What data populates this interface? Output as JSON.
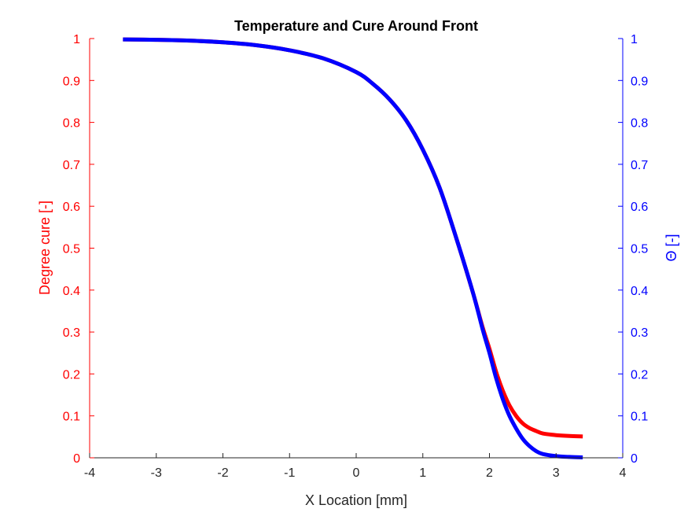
{
  "chart_data": {
    "type": "line",
    "title": "Temperature and Cure Around Front",
    "xlabel": "X Location [mm]",
    "ylabel_left": "Degree cure [-]",
    "ylabel_right": "Θ [-]",
    "xlim": [
      -4,
      4
    ],
    "ylim_left": [
      0,
      1
    ],
    "ylim_right": [
      0,
      1
    ],
    "x_ticks": [
      "-4",
      "-3",
      "-2",
      "-1",
      "0",
      "1",
      "2",
      "3",
      "4"
    ],
    "y_ticks_left": [
      "0",
      "0.1",
      "0.2",
      "0.3",
      "0.4",
      "0.5",
      "0.6",
      "0.7",
      "0.8",
      "0.9",
      "1"
    ],
    "y_ticks_right": [
      "0",
      "0.1",
      "0.2",
      "0.3",
      "0.4",
      "0.5",
      "0.6",
      "0.7",
      "0.8",
      "0.9",
      "1"
    ],
    "grid": false,
    "colors": {
      "left": "#ff0000",
      "right": "#0000ff",
      "axis": "#262626"
    },
    "series": [
      {
        "axis": "left",
        "color": "#ff0000",
        "x": [
          -3.5,
          -3.0,
          -2.5,
          -2.0,
          -1.5,
          -1.0,
          -0.5,
          0.0,
          0.25,
          0.5,
          0.75,
          1.0,
          1.25,
          1.5,
          1.75,
          1.9,
          2.0,
          2.1,
          2.2,
          2.3,
          2.4,
          2.5,
          2.6,
          2.7,
          2.8,
          3.0,
          3.2,
          3.4
        ],
        "y": [
          0.998,
          0.997,
          0.995,
          0.991,
          0.984,
          0.972,
          0.953,
          0.92,
          0.892,
          0.855,
          0.805,
          0.735,
          0.645,
          0.525,
          0.395,
          0.31,
          0.26,
          0.205,
          0.16,
          0.125,
          0.1,
          0.082,
          0.071,
          0.064,
          0.058,
          0.054,
          0.052,
          0.051
        ]
      },
      {
        "axis": "right",
        "color": "#0000ff",
        "x": [
          -3.5,
          -3.0,
          -2.5,
          -2.0,
          -1.5,
          -1.0,
          -0.5,
          0.0,
          0.25,
          0.5,
          0.75,
          1.0,
          1.25,
          1.5,
          1.75,
          1.9,
          2.0,
          2.1,
          2.2,
          2.3,
          2.4,
          2.5,
          2.6,
          2.7,
          2.8,
          3.0,
          3.2,
          3.4
        ],
        "y": [
          0.998,
          0.997,
          0.995,
          0.991,
          0.984,
          0.972,
          0.953,
          0.92,
          0.892,
          0.855,
          0.805,
          0.735,
          0.645,
          0.525,
          0.395,
          0.305,
          0.25,
          0.19,
          0.14,
          0.1,
          0.07,
          0.045,
          0.028,
          0.016,
          0.009,
          0.004,
          0.002,
          0.001
        ]
      }
    ]
  }
}
